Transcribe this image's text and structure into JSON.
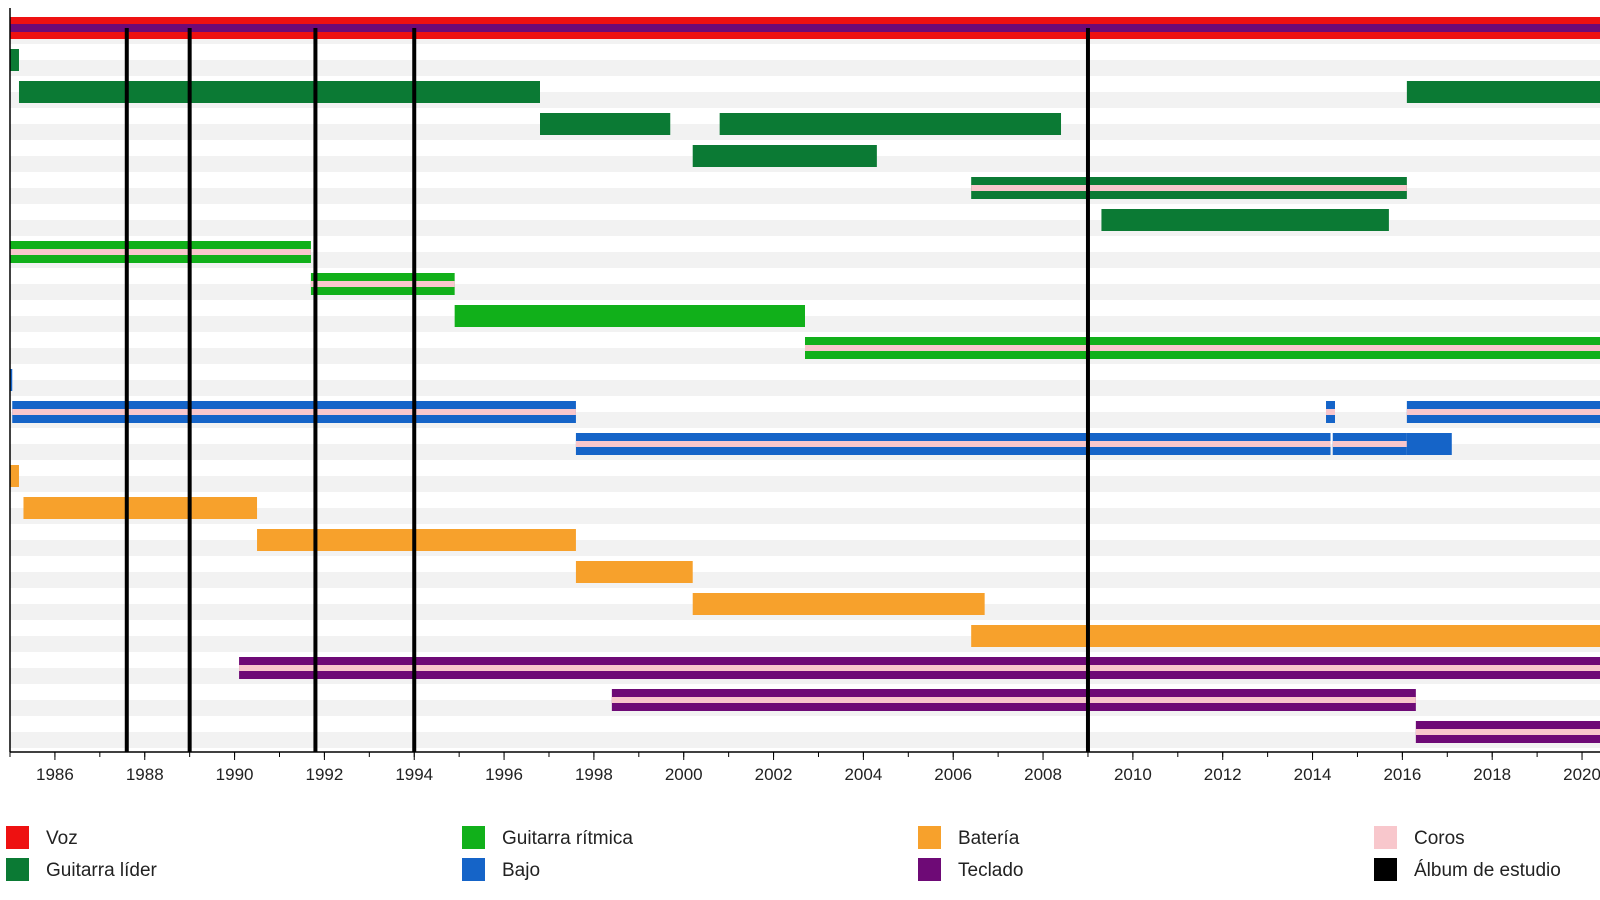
{
  "chart_data": {
    "type": "timeline",
    "title": "",
    "xlabel": "",
    "ylabel": "",
    "xlim": [
      1985.0,
      2020.4
    ],
    "x_ticks": [
      1986,
      1988,
      1990,
      1992,
      1994,
      1996,
      1998,
      2000,
      2002,
      2004,
      2006,
      2008,
      2010,
      2012,
      2014,
      2016,
      2018,
      2020
    ],
    "grid": "horizontal row bands",
    "legend_position": "bottom",
    "colors": {
      "voz": "#ee1111",
      "guitarra_lider": "#0b7a34",
      "guitarra_ritmica": "#11b01a",
      "bateria": "#f7a12c",
      "bajo": "#1564c8",
      "teclado": "#6e0a76",
      "coros": "#f8c7cc",
      "album": "#000000"
    },
    "legend": [
      {
        "label": "Voz",
        "role": "voz"
      },
      {
        "label": "Guitarra líder",
        "role": "guitarra_lider"
      },
      {
        "label": "Guitarra rítmica",
        "role": "guitarra_ritmica"
      },
      {
        "label": "Bajo",
        "role": "bajo"
      },
      {
        "label": "Batería",
        "role": "bateria"
      },
      {
        "label": "Teclado",
        "role": "teclado"
      },
      {
        "label": "Coros",
        "role": "coros"
      },
      {
        "label": "Álbum de estudio",
        "role": "album"
      }
    ],
    "studio_albums": [
      1987.6,
      1989.0,
      1991.8,
      1994.0,
      2009.0
    ],
    "rows": [
      {
        "segments": [
          {
            "start": 1985.0,
            "end": 2020.4,
            "roles": [
              "voz",
              "teclado"
            ]
          }
        ]
      },
      {
        "segments": [
          {
            "start": 1985.0,
            "end": 1985.2,
            "roles": [
              "guitarra_lider"
            ]
          }
        ]
      },
      {
        "segments": [
          {
            "start": 1985.2,
            "end": 1996.8,
            "roles": [
              "guitarra_lider"
            ]
          },
          {
            "start": 2016.1,
            "end": 2020.4,
            "roles": [
              "guitarra_lider"
            ]
          }
        ]
      },
      {
        "segments": [
          {
            "start": 1996.8,
            "end": 1999.7,
            "roles": [
              "guitarra_lider"
            ]
          },
          {
            "start": 2000.8,
            "end": 2008.4,
            "roles": [
              "guitarra_lider"
            ]
          }
        ]
      },
      {
        "segments": [
          {
            "start": 2000.2,
            "end": 2004.3,
            "roles": [
              "guitarra_lider"
            ]
          }
        ]
      },
      {
        "segments": [
          {
            "start": 2006.4,
            "end": 2016.1,
            "roles": [
              "guitarra_lider",
              "coros"
            ]
          }
        ]
      },
      {
        "segments": [
          {
            "start": 2009.3,
            "end": 2015.7,
            "roles": [
              "guitarra_lider"
            ]
          }
        ]
      },
      {
        "segments": [
          {
            "start": 1985.0,
            "end": 1991.7,
            "roles": [
              "guitarra_ritmica",
              "coros"
            ]
          }
        ]
      },
      {
        "segments": [
          {
            "start": 1991.7,
            "end": 1994.9,
            "roles": [
              "guitarra_ritmica",
              "coros"
            ]
          }
        ]
      },
      {
        "segments": [
          {
            "start": 1994.9,
            "end": 2002.7,
            "roles": [
              "guitarra_ritmica"
            ]
          }
        ]
      },
      {
        "segments": [
          {
            "start": 2002.7,
            "end": 2020.4,
            "roles": [
              "guitarra_ritmica",
              "coros"
            ]
          }
        ]
      },
      {
        "segments": [
          {
            "start": 1985.0,
            "end": 1985.05,
            "roles": [
              "bajo"
            ]
          }
        ]
      },
      {
        "segments": [
          {
            "start": 1985.05,
            "end": 1997.6,
            "roles": [
              "bajo",
              "coros"
            ]
          },
          {
            "start": 2014.3,
            "end": 2014.5,
            "roles": [
              "bajo",
              "coros"
            ]
          },
          {
            "start": 2016.1,
            "end": 2020.4,
            "roles": [
              "bajo",
              "coros"
            ]
          }
        ]
      },
      {
        "segments": [
          {
            "start": 1997.6,
            "end": 2014.4,
            "roles": [
              "bajo",
              "coros"
            ]
          },
          {
            "start": 2014.45,
            "end": 2016.1,
            "roles": [
              "bajo",
              "coros"
            ]
          },
          {
            "start": 2016.1,
            "end": 2017.1,
            "roles": [
              "bajo"
            ]
          }
        ]
      },
      {
        "segments": [
          {
            "start": 1985.0,
            "end": 1985.2,
            "roles": [
              "bateria"
            ]
          }
        ]
      },
      {
        "segments": [
          {
            "start": 1985.3,
            "end": 1990.5,
            "roles": [
              "bateria"
            ]
          }
        ]
      },
      {
        "segments": [
          {
            "start": 1990.5,
            "end": 1997.6,
            "roles": [
              "bateria"
            ]
          }
        ]
      },
      {
        "segments": [
          {
            "start": 1997.6,
            "end": 2000.2,
            "roles": [
              "bateria"
            ]
          }
        ]
      },
      {
        "segments": [
          {
            "start": 2000.2,
            "end": 2006.7,
            "roles": [
              "bateria"
            ]
          }
        ]
      },
      {
        "segments": [
          {
            "start": 2006.4,
            "end": 2020.4,
            "roles": [
              "bateria"
            ]
          }
        ]
      },
      {
        "segments": [
          {
            "start": 1990.1,
            "end": 2020.4,
            "roles": [
              "teclado",
              "coros"
            ]
          }
        ]
      },
      {
        "segments": [
          {
            "start": 1998.4,
            "end": 2016.3,
            "roles": [
              "teclado",
              "coros"
            ]
          }
        ]
      },
      {
        "segments": [
          {
            "start": 2016.3,
            "end": 2020.4,
            "roles": [
              "teclado",
              "coros"
            ]
          }
        ]
      }
    ]
  }
}
